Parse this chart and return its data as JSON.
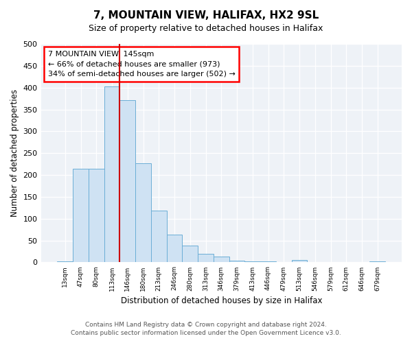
{
  "title": "7, MOUNTAIN VIEW, HALIFAX, HX2 9SL",
  "subtitle": "Size of property relative to detached houses in Halifax",
  "xlabel": "Distribution of detached houses by size in Halifax",
  "ylabel": "Number of detached properties",
  "bar_color": "#cfe2f3",
  "bar_edge_color": "#6baed6",
  "background_color": "#eef2f7",
  "annotation_line1": "7 MOUNTAIN VIEW: 145sqm",
  "annotation_line2": "← 66% of detached houses are smaller (973)",
  "annotation_line3": "34% of semi-detached houses are larger (502) →",
  "vline_color": "#cc0000",
  "categories": [
    "13sqm",
    "47sqm",
    "80sqm",
    "113sqm",
    "146sqm",
    "180sqm",
    "213sqm",
    "246sqm",
    "280sqm",
    "313sqm",
    "346sqm",
    "379sqm",
    "413sqm",
    "446sqm",
    "479sqm",
    "513sqm",
    "546sqm",
    "579sqm",
    "612sqm",
    "646sqm",
    "679sqm"
  ],
  "values": [
    3,
    215,
    215,
    403,
    372,
    226,
    119,
    64,
    38,
    19,
    13,
    4,
    2,
    2,
    0,
    6,
    0,
    0,
    0,
    0,
    3
  ],
  "vline_index": 4,
  "ylim": [
    0,
    500
  ],
  "yticks": [
    0,
    50,
    100,
    150,
    200,
    250,
    300,
    350,
    400,
    450,
    500
  ],
  "footer_line1": "Contains HM Land Registry data © Crown copyright and database right 2024.",
  "footer_line2": "Contains public sector information licensed under the Open Government Licence v3.0."
}
